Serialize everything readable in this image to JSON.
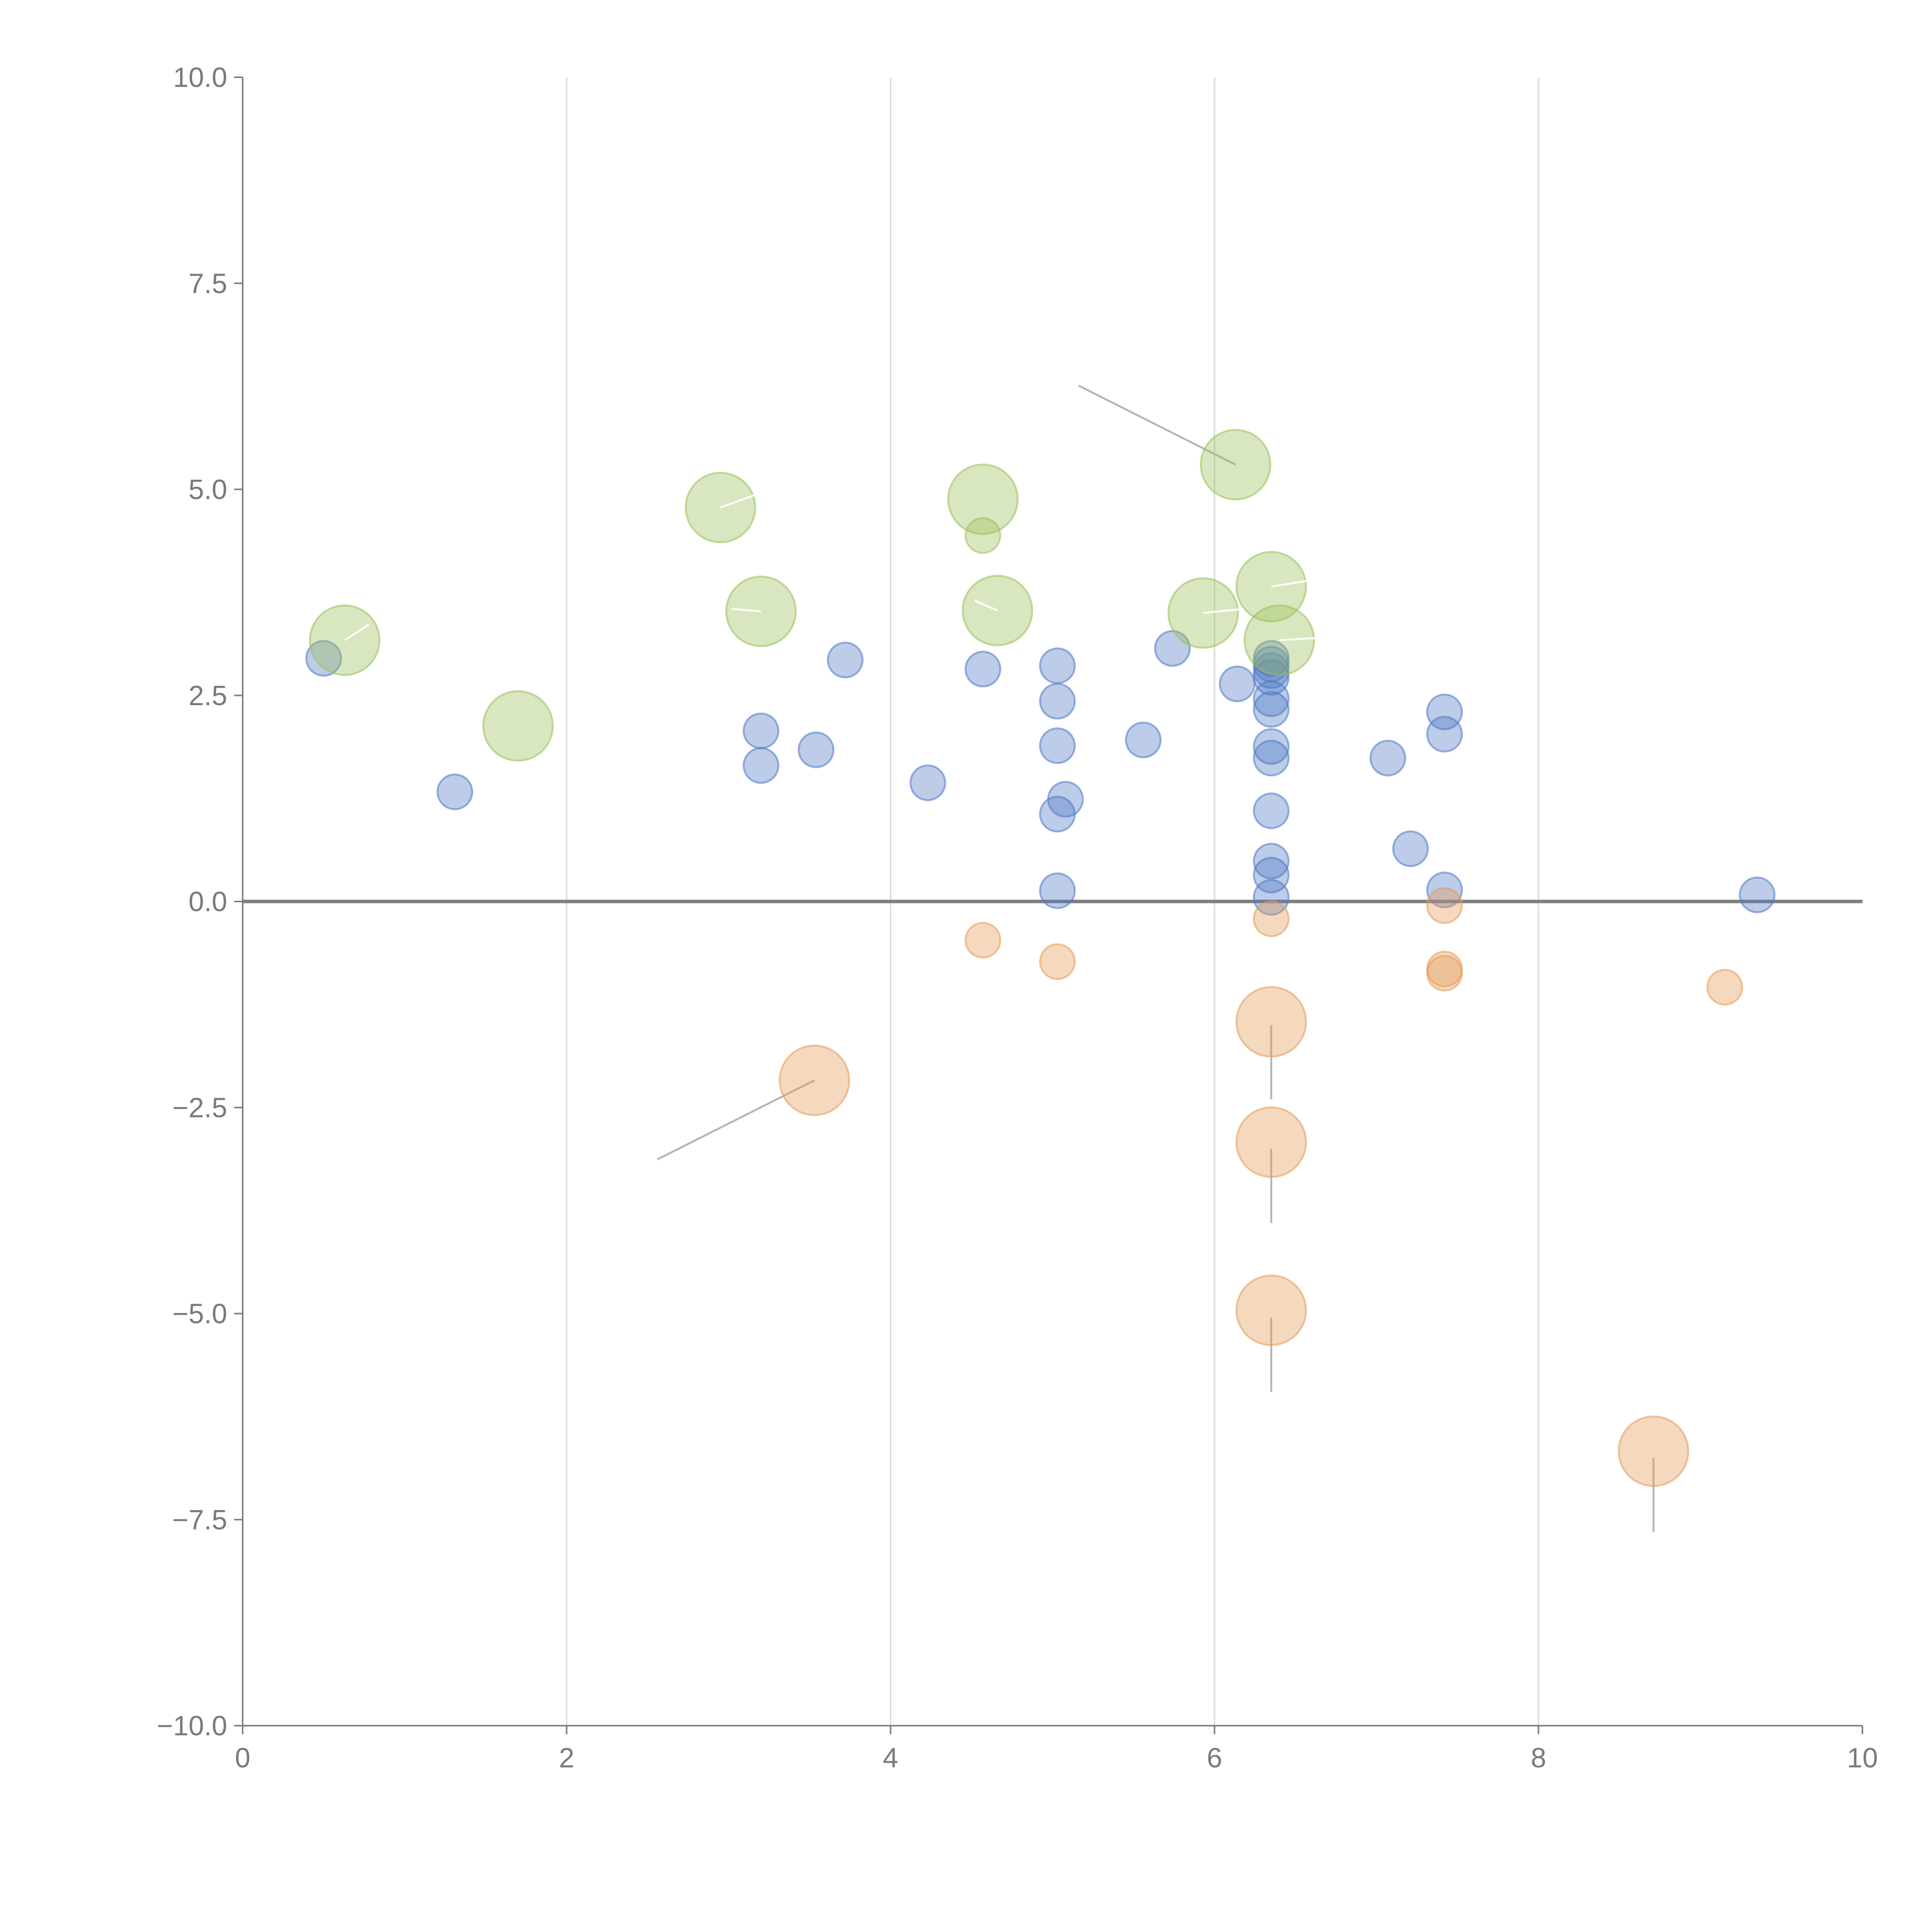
{
  "chart_data": {
    "type": "scatter",
    "title": "",
    "xlabel": "",
    "ylabel": "",
    "xlim": [
      0,
      10
    ],
    "ylim": [
      -10,
      10
    ],
    "grid": "vertical",
    "x_ticks": [
      "0",
      "2",
      "4",
      "6",
      "8",
      "10"
    ],
    "y_ticks": [
      "10.0",
      "7.5",
      "5.0",
      "2.5",
      "0.0",
      "−2.5",
      "−5.0",
      "−7.5",
      "−10.0"
    ],
    "colors": {
      "blue": "#4e79c4",
      "orange": "#e49a57",
      "green": "#9bbf5a",
      "axis": "#7f7f7f"
    },
    "series": [
      {
        "name": "blue",
        "color": "#4e79c4",
        "size": "small",
        "points": [
          [
            0.5,
            2.95
          ],
          [
            1.31,
            1.33
          ],
          [
            3.2,
            2.07
          ],
          [
            3.2,
            1.65
          ],
          [
            3.54,
            1.84
          ],
          [
            3.72,
            2.93
          ],
          [
            4.23,
            1.44
          ],
          [
            4.57,
            2.82
          ],
          [
            5.03,
            2.86
          ],
          [
            5.03,
            2.43
          ],
          [
            5.03,
            1.89
          ],
          [
            5.08,
            1.24
          ],
          [
            5.03,
            1.06
          ],
          [
            5.03,
            0.13
          ],
          [
            5.56,
            1.96
          ],
          [
            5.74,
            3.07
          ],
          [
            6.14,
            2.64
          ],
          [
            6.35,
            2.95
          ],
          [
            6.35,
            2.88
          ],
          [
            6.35,
            2.8
          ],
          [
            6.35,
            2.72
          ],
          [
            6.35,
            2.46
          ],
          [
            6.35,
            2.33
          ],
          [
            6.35,
            1.88
          ],
          [
            6.35,
            1.74
          ],
          [
            6.35,
            1.1
          ],
          [
            6.35,
            0.49
          ],
          [
            6.35,
            0.32
          ],
          [
            6.35,
            0.05
          ],
          [
            7.07,
            1.74
          ],
          [
            7.21,
            0.64
          ],
          [
            7.42,
            2.3
          ],
          [
            7.42,
            2.03
          ],
          [
            7.42,
            0.14
          ],
          [
            9.35,
            0.08
          ]
        ]
      },
      {
        "name": "orange",
        "color": "#e49a57",
        "points": [
          {
            "x": 3.53,
            "y": -2.17,
            "size": "large"
          },
          {
            "x": 4.57,
            "y": -0.47,
            "size": "small"
          },
          {
            "x": 5.03,
            "y": -0.73,
            "size": "small"
          },
          {
            "x": 6.35,
            "y": -0.21,
            "size": "small"
          },
          {
            "x": 6.35,
            "y": -1.46,
            "size": "large"
          },
          {
            "x": 6.35,
            "y": -2.92,
            "size": "large"
          },
          {
            "x": 6.35,
            "y": -4.96,
            "size": "large"
          },
          {
            "x": 7.42,
            "y": -0.05,
            "size": "small"
          },
          {
            "x": 7.42,
            "y": -0.82,
            "size": "small"
          },
          {
            "x": 7.42,
            "y": -0.87,
            "size": "small"
          },
          {
            "x": 8.71,
            "y": -6.67,
            "size": "large"
          },
          {
            "x": 9.15,
            "y": -1.04,
            "size": "small"
          }
        ]
      },
      {
        "name": "green",
        "color": "#9bbf5a",
        "points": [
          {
            "x": 0.63,
            "y": 3.17,
            "size": "large"
          },
          {
            "x": 1.7,
            "y": 2.13,
            "size": "large"
          },
          {
            "x": 2.95,
            "y": 4.78,
            "size": "large"
          },
          {
            "x": 3.2,
            "y": 3.52,
            "size": "large"
          },
          {
            "x": 4.57,
            "y": 4.88,
            "size": "large"
          },
          {
            "x": 4.57,
            "y": 4.44,
            "size": "small"
          },
          {
            "x": 4.66,
            "y": 3.53,
            "size": "large"
          },
          {
            "x": 5.93,
            "y": 3.5,
            "size": "large"
          },
          {
            "x": 6.13,
            "y": 5.3,
            "size": "large"
          },
          {
            "x": 6.35,
            "y": 3.82,
            "size": "large"
          },
          {
            "x": 6.4,
            "y": 3.17,
            "size": "large"
          }
        ]
      }
    ],
    "leader_lines": [
      {
        "from": [
          6.13,
          5.3
        ],
        "to": [
          5.16,
          6.26
        ],
        "style": "gray"
      },
      {
        "from": [
          3.53,
          -2.17
        ],
        "to": [
          2.56,
          -3.13
        ],
        "style": "gray"
      },
      {
        "from": [
          6.35,
          -1.5
        ],
        "to": [
          6.35,
          -2.4
        ],
        "style": "gray"
      },
      {
        "from": [
          6.35,
          -3.0
        ],
        "to": [
          6.35,
          -3.9
        ],
        "style": "gray"
      },
      {
        "from": [
          6.35,
          -5.05
        ],
        "to": [
          6.35,
          -5.95
        ],
        "style": "gray"
      },
      {
        "from": [
          8.71,
          -6.75
        ],
        "to": [
          8.71,
          -7.65
        ],
        "style": "gray"
      },
      {
        "from": [
          0.63,
          3.17
        ],
        "to": [
          0.78,
          3.36
        ],
        "style": "white"
      },
      {
        "from": [
          2.95,
          4.78
        ],
        "to": [
          3.16,
          4.93
        ],
        "style": "white"
      },
      {
        "from": [
          3.2,
          3.52
        ],
        "to": [
          3.02,
          3.55
        ],
        "style": "white"
      },
      {
        "from": [
          4.66,
          3.53
        ],
        "to": [
          4.52,
          3.65
        ],
        "style": "white"
      },
      {
        "from": [
          5.93,
          3.5
        ],
        "to": [
          6.18,
          3.55
        ],
        "style": "white"
      },
      {
        "from": [
          6.35,
          3.82
        ],
        "to": [
          6.6,
          3.9
        ],
        "style": "white"
      },
      {
        "from": [
          6.4,
          3.17
        ],
        "to": [
          6.66,
          3.2
        ],
        "style": "white"
      }
    ]
  }
}
